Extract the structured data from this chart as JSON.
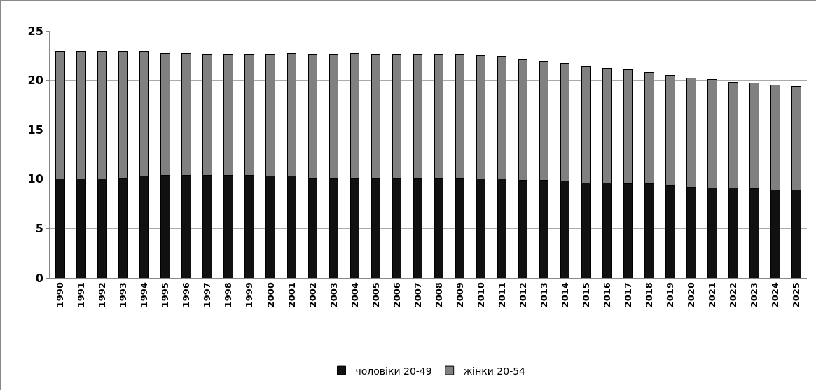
{
  "chart_data": {
    "type": "bar",
    "stacked": true,
    "categories": [
      "1990",
      "1991",
      "1992",
      "1993",
      "1994",
      "1995",
      "1996",
      "1997",
      "1998",
      "1999",
      "2000",
      "2001",
      "2002",
      "2003",
      "2004",
      "2005",
      "2006",
      "2007",
      "2008",
      "2009",
      "2010",
      "2011",
      "2012",
      "2013",
      "2014",
      "2015",
      "2016",
      "2017",
      "2018",
      "2019",
      "2020",
      "2021",
      "2022",
      "2023",
      "2024",
      "2025"
    ],
    "series": [
      {
        "name": "чоловіки 20-49",
        "color": "#111111",
        "values": [
          10.0,
          10.0,
          10.0,
          10.1,
          10.3,
          10.4,
          10.4,
          10.4,
          10.4,
          10.4,
          10.3,
          10.3,
          10.1,
          10.1,
          10.1,
          10.1,
          10.1,
          10.1,
          10.1,
          10.1,
          10.0,
          10.0,
          9.9,
          9.9,
          9.8,
          9.6,
          9.6,
          9.5,
          9.5,
          9.4,
          9.2,
          9.1,
          9.1,
          9.0,
          8.9,
          8.9
        ]
      },
      {
        "name": "жінки 20-54",
        "color": "#808080",
        "values": [
          12.9,
          12.9,
          12.9,
          12.8,
          12.6,
          12.3,
          12.3,
          12.2,
          12.2,
          12.2,
          12.3,
          12.4,
          12.5,
          12.5,
          12.6,
          12.5,
          12.5,
          12.5,
          12.5,
          12.5,
          12.5,
          12.4,
          12.2,
          12.0,
          11.9,
          11.8,
          11.6,
          11.6,
          11.3,
          11.1,
          11.0,
          11.0,
          10.7,
          10.7,
          10.6,
          10.5
        ]
      }
    ],
    "ylim": [
      0,
      25
    ],
    "yticks": [
      0,
      5,
      10,
      15,
      20,
      25
    ],
    "grid": "y",
    "legend": "bottom"
  }
}
